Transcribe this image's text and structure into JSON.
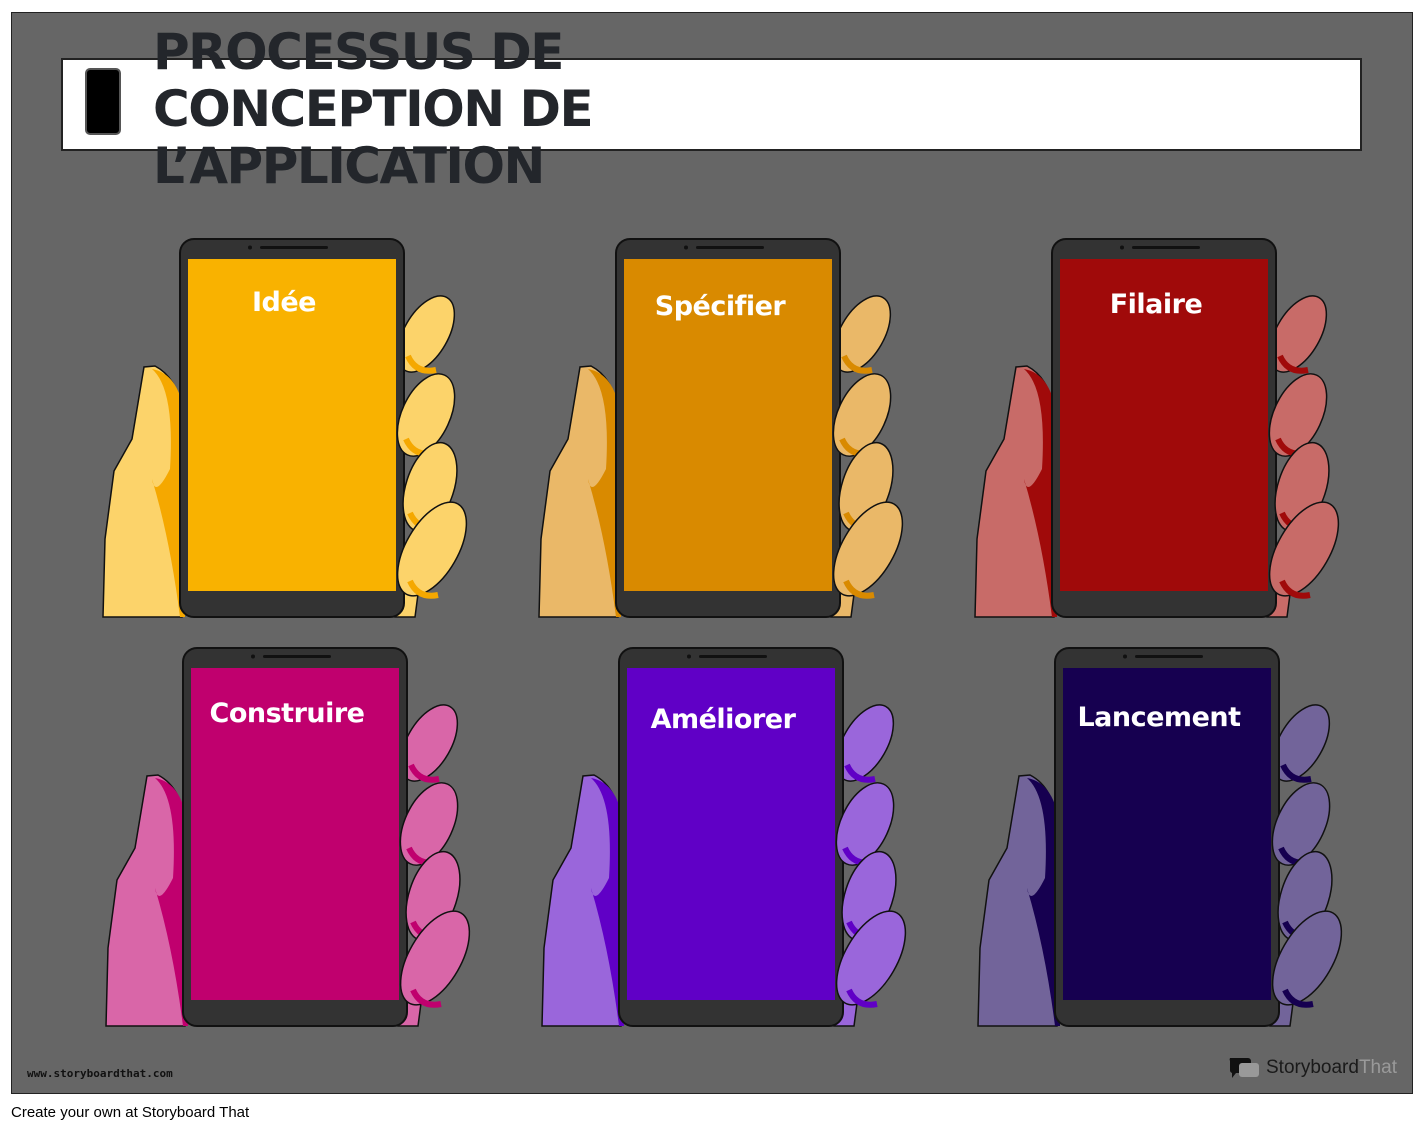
{
  "title": "PROCESSUS DE\nCONCEPTION DE\nL’APPLICATION",
  "title_icon": "smartphone-icon",
  "cards": [
    {
      "label": "Idée",
      "screen": "#F9B200",
      "hand": "#FCD36A",
      "shade": "#F5A800"
    },
    {
      "label": "Spécifier",
      "screen": "#D98A00",
      "hand": "#EAB868",
      "shade": "#D98A00"
    },
    {
      "label": "Filaire",
      "screen": "#A00A0A",
      "hand": "#C86B68",
      "shade": "#A00A0A"
    },
    {
      "label": "Construire",
      "screen": "#C0006E",
      "hand": "#D966A8",
      "shade": "#C0006E"
    },
    {
      "label": "Améliorer",
      "screen": "#6000C6",
      "hand": "#9A66DB",
      "shade": "#6000C6"
    },
    {
      "label": "Lancement",
      "screen": "#160050",
      "hand": "#72649A",
      "shade": "#160050"
    }
  ],
  "watermark_url": "www.storyboardthat.com",
  "brand": {
    "part1": "Storyboard",
    "part2": "That"
  },
  "footer": "Create your own at Storyboard That"
}
